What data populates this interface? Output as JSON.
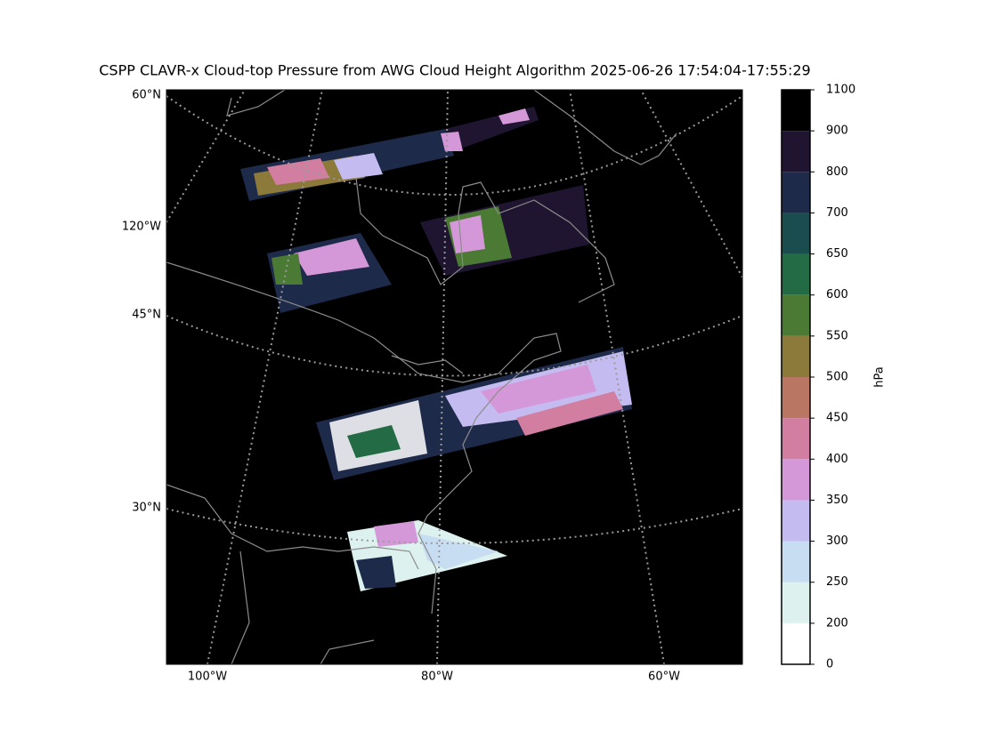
{
  "title": "CSPP CLAVR-x Cloud-top Pressure from AWG Cloud Height Algorithm 2025-06-26 17:54:04-17:55:29",
  "map": {
    "lat_labels": [
      "60°N",
      "120°W",
      "45°N",
      "30°N"
    ],
    "lon_labels": [
      "100°W",
      "80°W",
      "60°W"
    ]
  },
  "colorbar": {
    "label": "hPa",
    "ticks": [
      0,
      200,
      250,
      300,
      350,
      400,
      450,
      500,
      550,
      600,
      650,
      700,
      800,
      900,
      1100
    ],
    "colors": [
      "#ffffff",
      "#ddf2ee",
      "#c6ddf2",
      "#c4bcf0",
      "#d498d8",
      "#d27ea0",
      "#b97763",
      "#8b7a3a",
      "#4a7a34",
      "#236b44",
      "#1a4d4d",
      "#1e2a4a",
      "#1f1530",
      "#000000"
    ]
  }
}
